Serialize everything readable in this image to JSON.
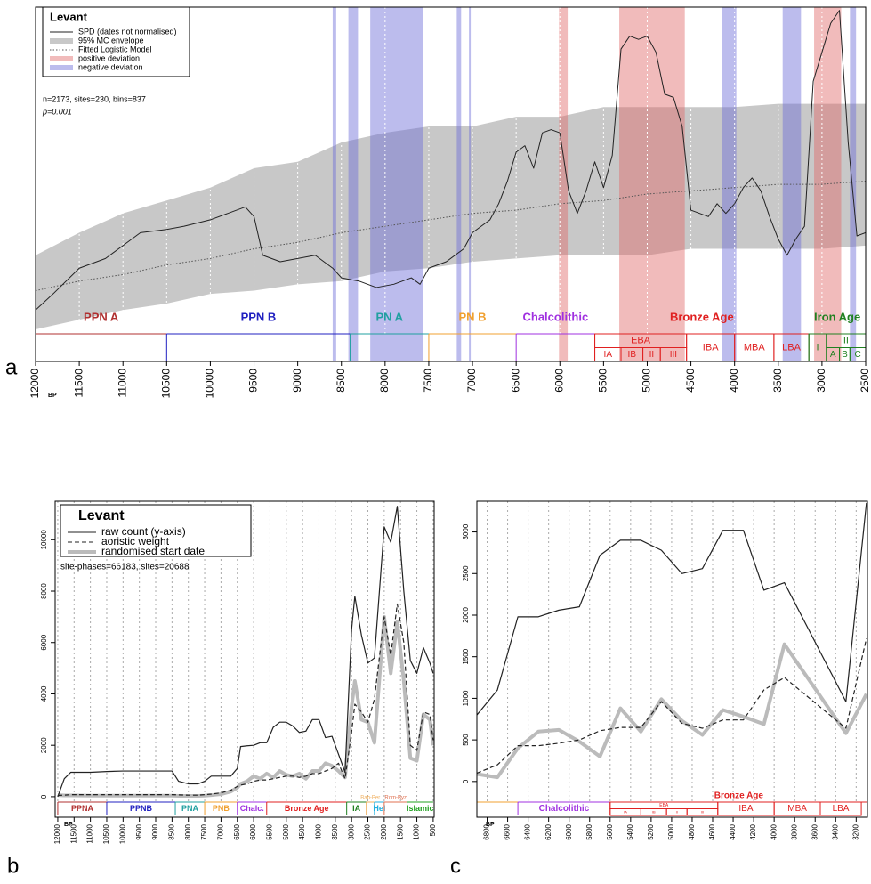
{
  "chart_data": [
    {
      "type": "spd",
      "panel_label": "a",
      "x_label": "BP",
      "legend": {
        "title": "Levant",
        "position": "top-left"
      },
      "annotations": [
        "n=2173, sites=230, bins=837",
        "p=0.001"
      ],
      "x": [
        12000,
        11800,
        11500,
        11200,
        11000,
        10800,
        10500,
        10300,
        10000,
        9800,
        9600,
        9500,
        9400,
        9200,
        9000,
        8800,
        8600,
        8500,
        8300,
        8100,
        7900,
        7700,
        7600,
        7500,
        7300,
        7100,
        7000,
        6900,
        6800,
        6700,
        6600,
        6500,
        6400,
        6300,
        6200,
        6100,
        6000,
        5900,
        5800,
        5700,
        5600,
        5500,
        5400,
        5300,
        5200,
        5100,
        5000,
        4900,
        4800,
        4700,
        4600,
        4500,
        4400,
        4300,
        4200,
        4100,
        4000,
        3900,
        3800,
        3700,
        3600,
        3500,
        3400,
        3300,
        3200,
        3100,
        3000,
        2900,
        2800,
        2700,
        2600,
        2500
      ],
      "spd": {
        "name": "SPD (dates not normalised)",
        "color": "#222222",
        "style": "solid",
        "values": [
          6,
          11,
          19,
          22,
          26,
          30,
          31,
          32,
          34,
          36,
          38,
          35,
          23,
          21,
          22,
          23,
          19,
          16,
          15,
          13,
          14,
          16,
          14,
          19,
          21,
          25,
          30,
          32,
          34,
          39,
          46,
          55,
          57,
          50,
          61,
          62,
          61,
          43,
          36,
          43,
          52,
          44,
          54,
          87,
          91,
          90,
          91,
          86,
          73,
          72,
          63,
          37,
          36,
          35,
          39,
          36,
          39,
          44,
          47,
          43,
          35,
          28,
          23,
          28,
          32,
          77,
          86,
          95,
          99,
          58,
          29,
          30
        ]
      },
      "envelope": {
        "name": "95% MC envelope",
        "color": "#c8c8c8",
        "style": "band",
        "x": [
          12000,
          11500,
          11000,
          10500,
          10000,
          9500,
          9000,
          8500,
          8000,
          7500,
          7000,
          6500,
          6000,
          5500,
          5000,
          4500,
          4000,
          3500,
          3000,
          2500
        ],
        "lower": [
          0,
          3,
          6,
          8,
          11,
          12,
          14,
          15,
          18,
          19,
          21,
          22,
          23,
          23,
          23,
          25,
          25,
          25,
          25,
          26
        ],
        "upper": [
          23,
          30,
          36,
          40,
          44,
          50,
          52,
          58,
          61,
          63,
          63,
          66,
          66,
          69,
          69,
          69,
          69,
          70,
          70,
          70
        ]
      },
      "fit": {
        "name": "Fitted Logistic Model",
        "color": "#555555",
        "style": "dotted",
        "values": [
          12,
          15,
          17,
          20,
          22,
          25,
          27,
          30,
          32,
          34,
          36,
          37,
          39,
          40,
          42,
          43,
          44,
          45,
          45,
          46
        ]
      },
      "positive": {
        "name": "positive deviation",
        "color": "#e06868",
        "style": "shade",
        "ranges": [
          [
            6010,
            5910
          ],
          [
            5320,
            4570
          ],
          [
            3090,
            2780
          ]
        ]
      },
      "negative": {
        "name": "negative deviation",
        "color": "#6a6ad8",
        "style": "shade",
        "ranges": [
          [
            8600,
            8560
          ],
          [
            8420,
            8310
          ],
          [
            8170,
            7570
          ],
          [
            7180,
            7130
          ],
          [
            7040,
            7020
          ],
          [
            4140,
            3980
          ],
          [
            3450,
            3240
          ],
          [
            2680,
            2610
          ]
        ]
      },
      "xlim": [
        12000,
        2500
      ],
      "xticks": [
        12000,
        11500,
        11000,
        10500,
        10000,
        9500,
        9000,
        8500,
        8000,
        7500,
        7000,
        6500,
        6000,
        5500,
        5000,
        4500,
        4000,
        3500,
        3000,
        2500
      ],
      "ylim": [
        0,
        100
      ],
      "grid": true,
      "grid_color": "#ffffff",
      "period_labels_above": true,
      "periods": [
        {
          "label": "PPN A",
          "from": 12000,
          "to": 10500,
          "color": "#b03030"
        },
        {
          "label": "PPN B",
          "from": 10500,
          "to": 8400,
          "color": "#2020c0"
        },
        {
          "label": "PN A",
          "from": 8400,
          "to": 7500,
          "color": "#20a0a0"
        },
        {
          "label": "PN B",
          "from": 7500,
          "to": 6500,
          "color": "#f0a030"
        },
        {
          "label": "Chalcolithic",
          "from": 6500,
          "to": 5600,
          "color": "#a030e0"
        },
        {
          "label": "Bronze Age",
          "from": 5600,
          "to": 3150,
          "color": "#e02020",
          "sub": [
            {
              "label": "EBA",
              "from": 5600,
              "to": 4550,
              "sub": [
                {
                  "label": "IA",
                  "from": 5600,
                  "to": 5300
                },
                {
                  "label": "IB",
                  "from": 5300,
                  "to": 5050
                },
                {
                  "label": "II",
                  "from": 5050,
                  "to": 4850
                },
                {
                  "label": "III",
                  "from": 4850,
                  "to": 4550
                }
              ]
            },
            {
              "label": "IBA",
              "from": 4550,
              "to": 4000
            },
            {
              "label": "MBA",
              "from": 4000,
              "to": 3550
            },
            {
              "label": "LBA",
              "from": 3550,
              "to": 3150
            }
          ]
        },
        {
          "label": "Iron Age",
          "from": 3150,
          "to": 2500,
          "color": "#208020",
          "sub": [
            {
              "label": "I",
              "from": 3150,
              "to": 2950
            },
            {
              "label": "II",
              "from": 2950,
              "to": 2500,
              "sub": [
                {
                  "label": "A",
                  "from": 2950,
                  "to": 2800
                },
                {
                  "label": "B",
                  "from": 2800,
                  "to": 2680
                },
                {
                  "label": "C",
                  "from": 2680,
                  "to": 2500
                }
              ]
            }
          ]
        }
      ]
    },
    {
      "type": "line",
      "panel_label": "b",
      "x_label": "BP",
      "legend": {
        "title": "Levant",
        "position": "top-left"
      },
      "annotations": [
        "site-phases=66183, sites=20688"
      ],
      "x": [
        12000,
        11800,
        11600,
        11000,
        10500,
        10000,
        9500,
        9000,
        8500,
        8300,
        8000,
        7700,
        7500,
        7300,
        7000,
        6700,
        6500,
        6400,
        6200,
        6000,
        5800,
        5600,
        5400,
        5200,
        5000,
        4800,
        4600,
        4400,
        4200,
        4000,
        3800,
        3600,
        3400,
        3200,
        3000,
        2900,
        2700,
        2500,
        2300,
        2000,
        1800,
        1600,
        1400,
        1200,
        1000,
        800,
        600,
        500
      ],
      "series": [
        {
          "name": "raw count (y-axis)",
          "color": "#222222",
          "style": "solid",
          "values": [
            0,
            700,
            950,
            950,
            980,
            1000,
            1000,
            1000,
            1000,
            600,
            500,
            500,
            600,
            800,
            800,
            800,
            1100,
            1950,
            1980,
            2000,
            2100,
            2100,
            2700,
            2900,
            2900,
            2750,
            2500,
            2550,
            3000,
            3000,
            2300,
            2350,
            1650,
            950,
            6500,
            7800,
            6300,
            5200,
            5400,
            10500,
            9900,
            11300,
            8000,
            5300,
            4800,
            5800,
            5200,
            4800
          ]
        },
        {
          "name": "aoristic weight",
          "color": "#222222",
          "style": "dashed",
          "values": [
            50,
            60,
            80,
            80,
            80,
            80,
            80,
            80,
            80,
            70,
            60,
            60,
            80,
            100,
            150,
            250,
            400,
            450,
            500,
            600,
            650,
            650,
            700,
            750,
            800,
            800,
            750,
            800,
            900,
            900,
            1000,
            1100,
            1300,
            700,
            2500,
            3600,
            3300,
            2900,
            3800,
            7000,
            5500,
            7500,
            6000,
            2000,
            1800,
            3300,
            3200,
            2200
          ]
        },
        {
          "name": "randomised start date",
          "color": "#bbbbbb",
          "style": "thick",
          "values": [
            60,
            50,
            50,
            40,
            40,
            40,
            40,
            40,
            40,
            30,
            30,
            30,
            40,
            60,
            100,
            200,
            350,
            500,
            600,
            800,
            700,
            900,
            750,
            1000,
            850,
            800,
            900,
            700,
            1000,
            1000,
            1300,
            1200,
            1000,
            750,
            3500,
            4500,
            3000,
            2900,
            2100,
            7000,
            4800,
            6800,
            4500,
            1500,
            1400,
            3200,
            3000,
            2000
          ]
        }
      ],
      "xlim": [
        12080,
        470
      ],
      "xticks": [
        12000,
        11500,
        11000,
        10500,
        10000,
        9500,
        9000,
        8500,
        8000,
        7500,
        7000,
        6500,
        6000,
        5500,
        5000,
        4500,
        4000,
        3500,
        3000,
        2500,
        2000,
        1500,
        1000,
        500
      ],
      "ylim": [
        -800,
        11500
      ],
      "yticks": [
        0,
        2000,
        4000,
        6000,
        8000,
        10000
      ],
      "grid": true,
      "grid_color": "#aaaaaa",
      "period_labels_above": false,
      "periods": [
        {
          "label": "PPNA",
          "from": 12000,
          "to": 10500,
          "color": "#b03030"
        },
        {
          "label": "PPNB",
          "from": 10500,
          "to": 8400,
          "color": "#2020c0"
        },
        {
          "label": "PNA",
          "from": 8400,
          "to": 7500,
          "color": "#20a0a0"
        },
        {
          "label": "PNB",
          "from": 7500,
          "to": 6500,
          "color": "#f0a030"
        },
        {
          "label": "Chalc.",
          "from": 6500,
          "to": 5600,
          "color": "#a030e0"
        },
        {
          "label": "Bronze Age",
          "from": 5600,
          "to": 3150,
          "color": "#e02020"
        },
        {
          "label": "IA",
          "from": 3150,
          "to": 2550,
          "color": "#208020"
        },
        {
          "label": "Bab-Per",
          "from": 2550,
          "to": 2300,
          "color": "#f0b060",
          "upper": true
        },
        {
          "label": "Hel",
          "from": 2300,
          "to": 2000,
          "color": "#20b0e0"
        },
        {
          "label": "Rom-Byz",
          "from": 2000,
          "to": 1300,
          "color": "#e07050",
          "upper": true
        },
        {
          "label": "Islamic",
          "from": 1300,
          "to": 500,
          "color": "#20a020"
        }
      ]
    },
    {
      "type": "line",
      "panel_label": "c",
      "x_label": "BP",
      "x": [
        6900,
        6700,
        6500,
        6300,
        6100,
        5900,
        5700,
        5500,
        5300,
        5100,
        4900,
        4700,
        4500,
        4300,
        4100,
        3900,
        3300,
        3100
      ],
      "series": [
        {
          "color": "#222222",
          "style": "solid",
          "values": [
            800,
            1100,
            1980,
            1980,
            2060,
            2100,
            2720,
            2900,
            2900,
            2780,
            2500,
            2560,
            3020,
            3020,
            2300,
            2390,
            960,
            3350
          ]
        },
        {
          "color": "#222222",
          "style": "dashed",
          "values": [
            100,
            200,
            430,
            430,
            460,
            500,
            610,
            650,
            650,
            960,
            700,
            640,
            740,
            740,
            1100,
            1250,
            640,
            1720
          ]
        },
        {
          "color": "#bbbbbb",
          "style": "thick",
          "values": [
            90,
            50,
            400,
            600,
            620,
            480,
            300,
            880,
            600,
            990,
            730,
            560,
            860,
            780,
            690,
            1650,
            580,
            1050
          ]
        }
      ],
      "xlim": [
        6900,
        3090
      ],
      "xticks": [
        6800,
        6600,
        6400,
        6200,
        6000,
        5800,
        5600,
        5400,
        5200,
        5000,
        4800,
        4600,
        4400,
        4200,
        4000,
        3800,
        3600,
        3400,
        3200
      ],
      "ylim": [
        -430,
        3370
      ],
      "yticks": [
        0,
        500,
        1000,
        1500,
        2000,
        2500,
        3000
      ],
      "grid": true,
      "grid_color": "#aaaaaa",
      "period_labels_above": false,
      "periods": [
        {
          "label": null,
          "from": 6900,
          "to": 6500,
          "color": "#f0a030"
        },
        {
          "label": "Chalcolithic",
          "from": 6500,
          "to": 5600,
          "color": "#a030e0"
        },
        {
          "label": "Bronze Age",
          "from": 5600,
          "to": 3090,
          "color": "#e02020",
          "sub": [
            {
              "label": "EBA",
              "from": 5600,
              "to": 4550,
              "sub": [
                {
                  "label": "IA",
                  "from": 5600,
                  "to": 5300
                },
                {
                  "label": "IB",
                  "from": 5300,
                  "to": 5050
                },
                {
                  "label": "II",
                  "from": 5050,
                  "to": 4850
                },
                {
                  "label": "III",
                  "from": 4850,
                  "to": 4550
                }
              ]
            },
            {
              "label": "IBA",
              "from": 4550,
              "to": 4000
            },
            {
              "label": "MBA",
              "from": 4000,
              "to": 3550
            },
            {
              "label": "LBA",
              "from": 3550,
              "to": 3150
            }
          ]
        }
      ]
    }
  ]
}
